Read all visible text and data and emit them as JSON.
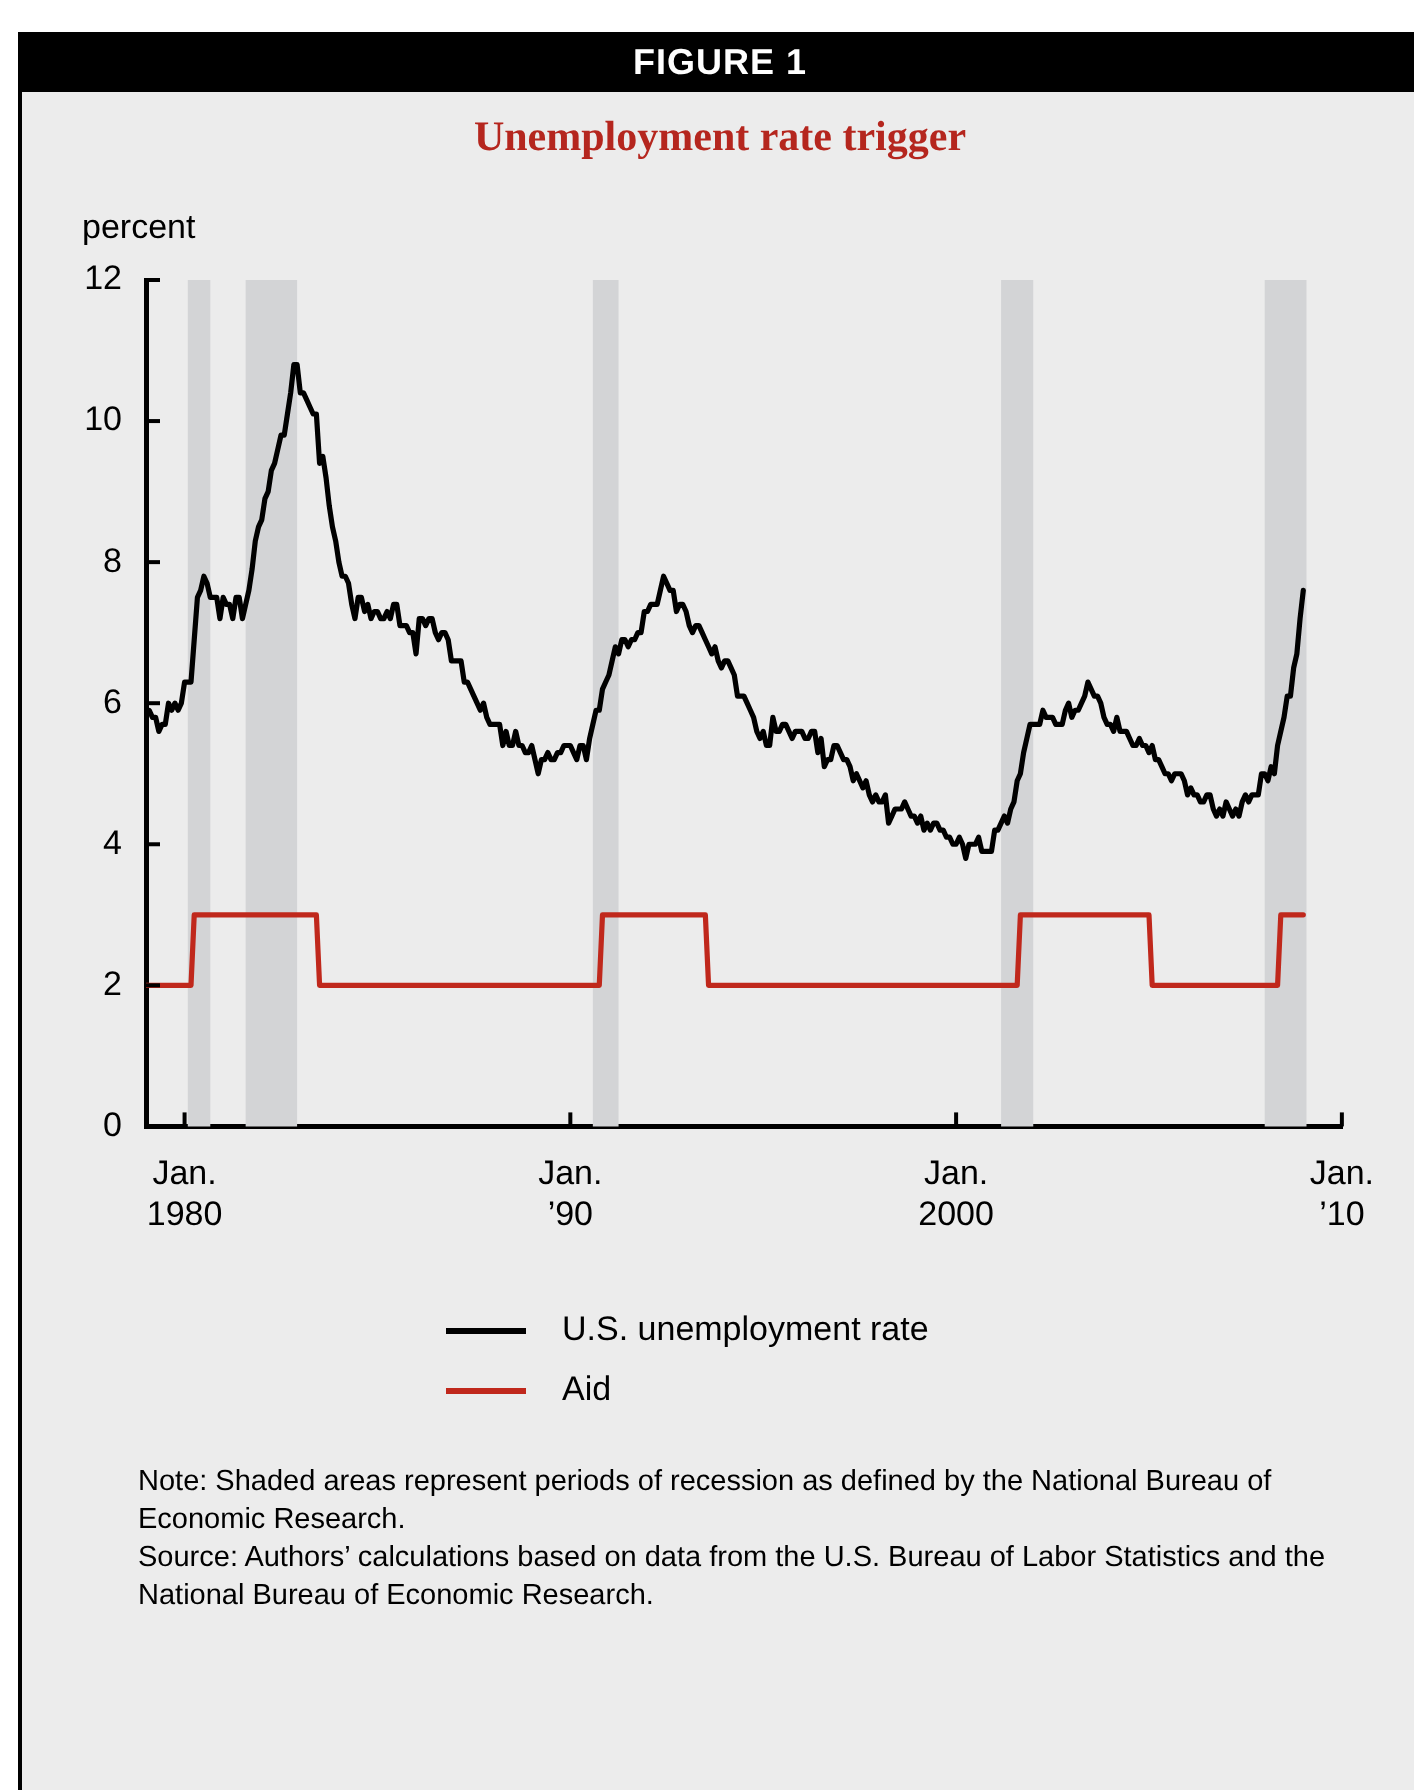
{
  "chart_data": {
    "type": "line",
    "title": "FIGURE 1",
    "subtitle": "Unemployment rate trigger",
    "ylabel": "percent",
    "xlim": [
      "1979-01",
      "2010-01"
    ],
    "xticks": [
      {
        "value": "1980-01",
        "label": "Jan. 1980"
      },
      {
        "value": "1990-01",
        "label": "Jan. ’90"
      },
      {
        "value": "2000-01",
        "label": "Jan. 2000"
      },
      {
        "value": "2010-01",
        "label": "Jan. ’10"
      }
    ],
    "ylim": [
      0,
      12
    ],
    "yticks": [
      0,
      2,
      4,
      6,
      8,
      10,
      12
    ],
    "grid": false,
    "legend": "bottom",
    "marker": "none",
    "line_style": "solid",
    "bands": [
      {
        "axis": "x",
        "from": "1980-02",
        "to": "1980-09",
        "color": "#d3d4d6"
      },
      {
        "axis": "x",
        "from": "1981-08",
        "to": "1982-12",
        "color": "#d3d4d6"
      },
      {
        "axis": "x",
        "from": "1990-08",
        "to": "1991-04",
        "color": "#d3d4d6"
      },
      {
        "axis": "x",
        "from": "2001-03",
        "to": "2002-01",
        "color": "#d3d4d6"
      },
      {
        "axis": "x",
        "from": "2008-01",
        "to": "2009-02",
        "color": "#d3d4d6"
      }
    ],
    "series": [
      {
        "name": "U.S. unemployment rate",
        "color": "#000000",
        "x": [
          "1979-01",
          "1979-02",
          "1979-03",
          "1979-04",
          "1979-05",
          "1979-06",
          "1979-07",
          "1979-08",
          "1979-09",
          "1979-10",
          "1979-11",
          "1979-12",
          "1980-01",
          "1980-02",
          "1980-03",
          "1980-04",
          "1980-05",
          "1980-06",
          "1980-07",
          "1980-08",
          "1980-09",
          "1980-10",
          "1980-11",
          "1980-12",
          "1981-01",
          "1981-02",
          "1981-03",
          "1981-04",
          "1981-05",
          "1981-06",
          "1981-07",
          "1981-08",
          "1981-09",
          "1981-10",
          "1981-11",
          "1981-12",
          "1982-01",
          "1982-02",
          "1982-03",
          "1982-04",
          "1982-05",
          "1982-06",
          "1982-07",
          "1982-08",
          "1982-09",
          "1982-10",
          "1982-11",
          "1982-12",
          "1983-01",
          "1983-02",
          "1983-03",
          "1983-04",
          "1983-05",
          "1983-06",
          "1983-07",
          "1983-08",
          "1983-09",
          "1983-10",
          "1983-11",
          "1983-12",
          "1984-01",
          "1984-02",
          "1984-03",
          "1984-04",
          "1984-05",
          "1984-06",
          "1984-07",
          "1984-08",
          "1984-09",
          "1984-10",
          "1984-11",
          "1984-12",
          "1985-01",
          "1985-02",
          "1985-03",
          "1985-04",
          "1985-05",
          "1985-06",
          "1985-07",
          "1985-08",
          "1985-09",
          "1985-10",
          "1985-11",
          "1985-12",
          "1986-01",
          "1986-02",
          "1986-03",
          "1986-04",
          "1986-05",
          "1986-06",
          "1986-07",
          "1986-08",
          "1986-09",
          "1986-10",
          "1986-11",
          "1986-12",
          "1987-01",
          "1987-02",
          "1987-03",
          "1987-04",
          "1987-05",
          "1987-06",
          "1987-07",
          "1987-08",
          "1987-09",
          "1987-10",
          "1987-11",
          "1987-12",
          "1988-01",
          "1988-02",
          "1988-03",
          "1988-04",
          "1988-05",
          "1988-06",
          "1988-07",
          "1988-08",
          "1988-09",
          "1988-10",
          "1988-11",
          "1988-12",
          "1989-01",
          "1989-02",
          "1989-03",
          "1989-04",
          "1989-05",
          "1989-06",
          "1989-07",
          "1989-08",
          "1989-09",
          "1989-10",
          "1989-11",
          "1989-12",
          "1990-01",
          "1990-02",
          "1990-03",
          "1990-04",
          "1990-05",
          "1990-06",
          "1990-07",
          "1990-08",
          "1990-09",
          "1990-10",
          "1990-11",
          "1990-12",
          "1991-01",
          "1991-02",
          "1991-03",
          "1991-04",
          "1991-05",
          "1991-06",
          "1991-07",
          "1991-08",
          "1991-09",
          "1991-10",
          "1991-11",
          "1991-12",
          "1992-01",
          "1992-02",
          "1992-03",
          "1992-04",
          "1992-05",
          "1992-06",
          "1992-07",
          "1992-08",
          "1992-09",
          "1992-10",
          "1992-11",
          "1992-12",
          "1993-01",
          "1993-02",
          "1993-03",
          "1993-04",
          "1993-05",
          "1993-06",
          "1993-07",
          "1993-08",
          "1993-09",
          "1993-10",
          "1993-11",
          "1993-12",
          "1994-01",
          "1994-02",
          "1994-03",
          "1994-04",
          "1994-05",
          "1994-06",
          "1994-07",
          "1994-08",
          "1994-09",
          "1994-10",
          "1994-11",
          "1994-12",
          "1995-01",
          "1995-02",
          "1995-03",
          "1995-04",
          "1995-05",
          "1995-06",
          "1995-07",
          "1995-08",
          "1995-09",
          "1995-10",
          "1995-11",
          "1995-12",
          "1996-01",
          "1996-02",
          "1996-03",
          "1996-04",
          "1996-05",
          "1996-06",
          "1996-07",
          "1996-08",
          "1996-09",
          "1996-10",
          "1996-11",
          "1996-12",
          "1997-01",
          "1997-02",
          "1997-03",
          "1997-04",
          "1997-05",
          "1997-06",
          "1997-07",
          "1997-08",
          "1997-09",
          "1997-10",
          "1997-11",
          "1997-12",
          "1998-01",
          "1998-02",
          "1998-03",
          "1998-04",
          "1998-05",
          "1998-06",
          "1998-07",
          "1998-08",
          "1998-09",
          "1998-10",
          "1998-11",
          "1998-12",
          "1999-01",
          "1999-02",
          "1999-03",
          "1999-04",
          "1999-05",
          "1999-06",
          "1999-07",
          "1999-08",
          "1999-09",
          "1999-10",
          "1999-11",
          "1999-12",
          "2000-01",
          "2000-02",
          "2000-03",
          "2000-04",
          "2000-05",
          "2000-06",
          "2000-07",
          "2000-08",
          "2000-09",
          "2000-10",
          "2000-11",
          "2000-12",
          "2001-01",
          "2001-02",
          "2001-03",
          "2001-04",
          "2001-05",
          "2001-06",
          "2001-07",
          "2001-08",
          "2001-09",
          "2001-10",
          "2001-11",
          "2001-12",
          "2002-01",
          "2002-02",
          "2002-03",
          "2002-04",
          "2002-05",
          "2002-06",
          "2002-07",
          "2002-08",
          "2002-09",
          "2002-10",
          "2002-11",
          "2002-12",
          "2003-01",
          "2003-02",
          "2003-03",
          "2003-04",
          "2003-05",
          "2003-06",
          "2003-07",
          "2003-08",
          "2003-09",
          "2003-10",
          "2003-11",
          "2003-12",
          "2004-01",
          "2004-02",
          "2004-03",
          "2004-04",
          "2004-05",
          "2004-06",
          "2004-07",
          "2004-08",
          "2004-09",
          "2004-10",
          "2004-11",
          "2004-12",
          "2005-01",
          "2005-02",
          "2005-03",
          "2005-04",
          "2005-05",
          "2005-06",
          "2005-07",
          "2005-08",
          "2005-09",
          "2005-10",
          "2005-11",
          "2005-12",
          "2006-01",
          "2006-02",
          "2006-03",
          "2006-04",
          "2006-05",
          "2006-06",
          "2006-07",
          "2006-08",
          "2006-09",
          "2006-10",
          "2006-11",
          "2006-12",
          "2007-01",
          "2007-02",
          "2007-03",
          "2007-04",
          "2007-05",
          "2007-06",
          "2007-07",
          "2007-08",
          "2007-09",
          "2007-10",
          "2007-11",
          "2007-12",
          "2008-01",
          "2008-02",
          "2008-03",
          "2008-04",
          "2008-05",
          "2008-06",
          "2008-07",
          "2008-08",
          "2008-09",
          "2008-10",
          "2008-11",
          "2008-12",
          "2009-01"
        ],
        "values": [
          5.9,
          5.9,
          5.8,
          5.8,
          5.6,
          5.7,
          5.7,
          6.0,
          5.9,
          6.0,
          5.9,
          6.0,
          6.3,
          6.3,
          6.3,
          6.9,
          7.5,
          7.6,
          7.8,
          7.7,
          7.5,
          7.5,
          7.5,
          7.2,
          7.5,
          7.4,
          7.4,
          7.2,
          7.5,
          7.5,
          7.2,
          7.4,
          7.6,
          7.9,
          8.3,
          8.5,
          8.6,
          8.9,
          9.0,
          9.3,
          9.4,
          9.6,
          9.8,
          9.8,
          10.1,
          10.4,
          10.8,
          10.8,
          10.4,
          10.4,
          10.3,
          10.2,
          10.1,
          10.1,
          9.4,
          9.5,
          9.2,
          8.8,
          8.5,
          8.3,
          8.0,
          7.8,
          7.8,
          7.7,
          7.4,
          7.2,
          7.5,
          7.5,
          7.3,
          7.4,
          7.2,
          7.3,
          7.3,
          7.2,
          7.2,
          7.3,
          7.2,
          7.4,
          7.4,
          7.1,
          7.1,
          7.1,
          7.0,
          7.0,
          6.7,
          7.2,
          7.2,
          7.1,
          7.2,
          7.2,
          7.0,
          6.9,
          7.0,
          7.0,
          6.9,
          6.6,
          6.6,
          6.6,
          6.6,
          6.3,
          6.3,
          6.2,
          6.1,
          6.0,
          5.9,
          6.0,
          5.8,
          5.7,
          5.7,
          5.7,
          5.7,
          5.4,
          5.6,
          5.4,
          5.4,
          5.6,
          5.4,
          5.4,
          5.3,
          5.3,
          5.4,
          5.2,
          5.0,
          5.2,
          5.2,
          5.3,
          5.2,
          5.2,
          5.3,
          5.3,
          5.4,
          5.4,
          5.4,
          5.3,
          5.2,
          5.4,
          5.4,
          5.2,
          5.5,
          5.7,
          5.9,
          5.9,
          6.2,
          6.3,
          6.4,
          6.6,
          6.8,
          6.7,
          6.9,
          6.9,
          6.8,
          6.9,
          6.9,
          7.0,
          7.0,
          7.3,
          7.3,
          7.4,
          7.4,
          7.4,
          7.6,
          7.8,
          7.7,
          7.6,
          7.6,
          7.3,
          7.4,
          7.4,
          7.3,
          7.1,
          7.0,
          7.1,
          7.1,
          7.0,
          6.9,
          6.8,
          6.7,
          6.8,
          6.6,
          6.5,
          6.6,
          6.6,
          6.5,
          6.4,
          6.1,
          6.1,
          6.1,
          6.0,
          5.9,
          5.8,
          5.6,
          5.5,
          5.6,
          5.4,
          5.4,
          5.8,
          5.6,
          5.6,
          5.7,
          5.7,
          5.6,
          5.5,
          5.6,
          5.6,
          5.6,
          5.5,
          5.5,
          5.6,
          5.6,
          5.3,
          5.5,
          5.1,
          5.2,
          5.2,
          5.4,
          5.4,
          5.3,
          5.2,
          5.2,
          5.1,
          4.9,
          5.0,
          4.9,
          4.8,
          4.9,
          4.7,
          4.6,
          4.7,
          4.6,
          4.6,
          4.7,
          4.3,
          4.4,
          4.5,
          4.5,
          4.5,
          4.6,
          4.5,
          4.4,
          4.4,
          4.3,
          4.4,
          4.2,
          4.3,
          4.2,
          4.3,
          4.3,
          4.2,
          4.2,
          4.1,
          4.1,
          4.0,
          4.0,
          4.1,
          4.0,
          3.8,
          4.0,
          4.0,
          4.0,
          4.1,
          3.9,
          3.9,
          3.9,
          3.9,
          4.2,
          4.2,
          4.3,
          4.4,
          4.3,
          4.5,
          4.6,
          4.9,
          5.0,
          5.3,
          5.5,
          5.7,
          5.7,
          5.7,
          5.7,
          5.9,
          5.8,
          5.8,
          5.8,
          5.7,
          5.7,
          5.7,
          5.9,
          6.0,
          5.8,
          5.9,
          5.9,
          6.0,
          6.1,
          6.3,
          6.2,
          6.1,
          6.1,
          6.0,
          5.8,
          5.7,
          5.7,
          5.6,
          5.8,
          5.6,
          5.6,
          5.6,
          5.5,
          5.4,
          5.4,
          5.5,
          5.4,
          5.4,
          5.3,
          5.4,
          5.2,
          5.2,
          5.1,
          5.0,
          5.0,
          4.9,
          5.0,
          5.0,
          5.0,
          4.9,
          4.7,
          4.8,
          4.7,
          4.7,
          4.6,
          4.6,
          4.7,
          4.7,
          4.5,
          4.4,
          4.5,
          4.4,
          4.6,
          4.5,
          4.4,
          4.5,
          4.4,
          4.6,
          4.7,
          4.6,
          4.7,
          4.7,
          4.7,
          5.0,
          5.0,
          4.9,
          5.1,
          5.0,
          5.4,
          5.6,
          5.8,
          6.1,
          6.1,
          6.5,
          6.7,
          7.2,
          7.6
        ]
      },
      {
        "name": "Aid",
        "color": "#c0281c",
        "x": [
          "1979-01",
          "1980-03",
          "1980-04",
          "1983-06",
          "1983-07",
          "1990-10",
          "1990-11",
          "1993-07",
          "1993-08",
          "2001-08",
          "2001-09",
          "2005-01",
          "2005-02",
          "2008-05",
          "2008-06",
          "2009-01"
        ],
        "values": [
          2,
          2,
          3,
          3,
          2,
          2,
          3,
          3,
          2,
          2,
          3,
          3,
          2,
          2,
          3,
          3
        ]
      }
    ],
    "annotations": [
      "Note: Shaded areas represent periods of recession as defined by the National Bureau of Economic Research.",
      "Source: Authors’ calculations based on data from the U.S. Bureau of Labor Statistics and the National Bureau of Economic Research."
    ]
  }
}
